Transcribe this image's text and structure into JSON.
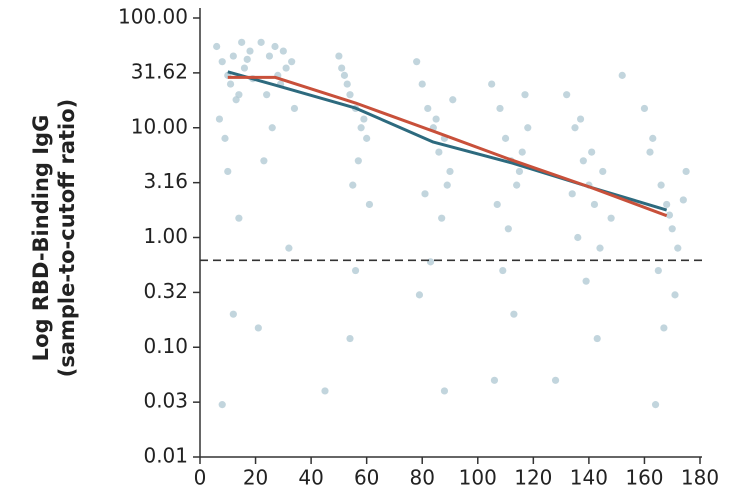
{
  "chart_data": {
    "type": "scatter",
    "y_label": [
      "Log RBD-Binding IgG",
      "(sample-to-cutoff ratio)"
    ],
    "yscale": "log",
    "xlim": [
      0,
      180
    ],
    "ylim": [
      0.01,
      100
    ],
    "xticks": [
      0,
      20,
      40,
      60,
      80,
      100,
      120,
      140,
      160,
      180
    ],
    "yticks": [
      0.01,
      {
        "value": 0.0316,
        "label": "0.03"
      },
      {
        "value": 0.1,
        "label": "0.10"
      },
      {
        "value": 0.316,
        "label": "0.32"
      },
      {
        "value": 1,
        "label": "1.00"
      },
      3.16,
      {
        "value": 10,
        "label": "10.00"
      },
      31.62,
      {
        "value": 100,
        "label": "100.00"
      }
    ],
    "reference_line": {
      "value": 0.62,
      "color": "#333333",
      "style": "dashed"
    },
    "series": [
      {
        "type": "scatter",
        "color": "#b3cad4",
        "x": [
          6,
          8,
          10,
          12,
          14,
          16,
          18,
          7,
          11,
          15,
          9,
          13,
          17,
          19,
          8,
          12,
          10,
          14,
          22,
          25,
          28,
          30,
          33,
          24,
          27,
          31,
          26,
          29,
          34,
          23,
          32,
          21,
          50,
          52,
          54,
          56,
          58,
          60,
          53,
          57,
          55,
          59,
          51,
          61,
          56,
          54,
          78,
          80,
          82,
          84,
          86,
          88,
          90,
          81,
          85,
          87,
          83,
          89,
          79,
          91,
          105,
          108,
          110,
          112,
          114,
          116,
          118,
          107,
          111,
          115,
          109,
          113,
          117,
          106,
          132,
          135,
          138,
          140,
          142,
          145,
          148,
          136,
          141,
          144,
          139,
          137,
          143,
          134,
          160,
          163,
          166,
          168,
          170,
          172,
          175,
          165,
          169,
          171,
          162,
          167,
          174,
          164,
          45,
          88,
          128,
          152
        ],
        "values": [
          55,
          40,
          30,
          45,
          20,
          35,
          50,
          12,
          25,
          60,
          8,
          18,
          42,
          28,
          0.03,
          0.2,
          4,
          1.5,
          60,
          45,
          30,
          50,
          40,
          20,
          55,
          35,
          10,
          25,
          15,
          5,
          0.8,
          0.15,
          45,
          30,
          20,
          15,
          10,
          8,
          25,
          5,
          3,
          12,
          35,
          2,
          0.5,
          0.12,
          40,
          25,
          15,
          10,
          6,
          8,
          4,
          2.5,
          12,
          1.5,
          0.6,
          3,
          0.3,
          18,
          25,
          15,
          8,
          5,
          3,
          6,
          10,
          2,
          1.2,
          4,
          0.5,
          0.2,
          20,
          0.05,
          20,
          10,
          5,
          3,
          2,
          4,
          1.5,
          1,
          6,
          0.8,
          0.4,
          12,
          0.12,
          2.5,
          15,
          8,
          3,
          2,
          1.2,
          0.8,
          4,
          0.5,
          1.6,
          0.3,
          6,
          0.15,
          2.2,
          0.03,
          0.04,
          0.04,
          0.05,
          30
        ]
      },
      {
        "type": "line",
        "color": "#2d6a7e",
        "x": [
          10,
          27,
          56,
          84,
          112,
          140,
          168
        ],
        "values": [
          32.3,
          24.5,
          15.1,
          7.4,
          4.8,
          2.9,
          1.78
        ]
      },
      {
        "type": "line",
        "color": "#c8503a",
        "x": [
          10,
          27,
          56,
          84,
          112,
          140,
          168
        ],
        "values": [
          28.8,
          28.8,
          16.8,
          9.3,
          5.1,
          2.9,
          1.58
        ]
      }
    ]
  }
}
